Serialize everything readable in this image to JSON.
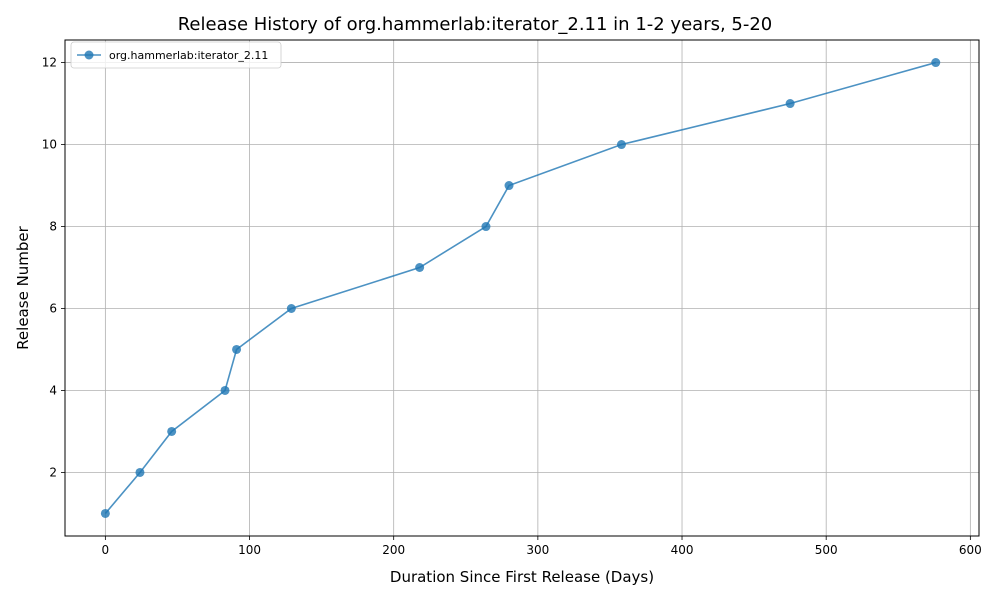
{
  "chart_data": {
    "type": "line",
    "title": "Release History of org.hammerlab:iterator_2.11 in 1-2 years, 5-20",
    "xlabel": "Duration Since First Release (Days)",
    "ylabel": "Release Number",
    "xlim": [
      -28,
      606
    ],
    "ylim": [
      0.45,
      12.55
    ],
    "xticks": [
      0,
      100,
      200,
      300,
      400,
      500,
      600
    ],
    "yticks": [
      2,
      4,
      6,
      8,
      10,
      12
    ],
    "grid": true,
    "legend_position": "top-left",
    "series": [
      {
        "name": "org.hammerlab:iterator_2.11",
        "color": "#1f77b4",
        "x": [
          0,
          24,
          46,
          83,
          91,
          129,
          218,
          264,
          280,
          358,
          475,
          576
        ],
        "y": [
          1,
          2,
          3,
          4,
          5,
          6,
          7,
          8,
          9,
          10,
          11,
          12
        ]
      }
    ]
  }
}
